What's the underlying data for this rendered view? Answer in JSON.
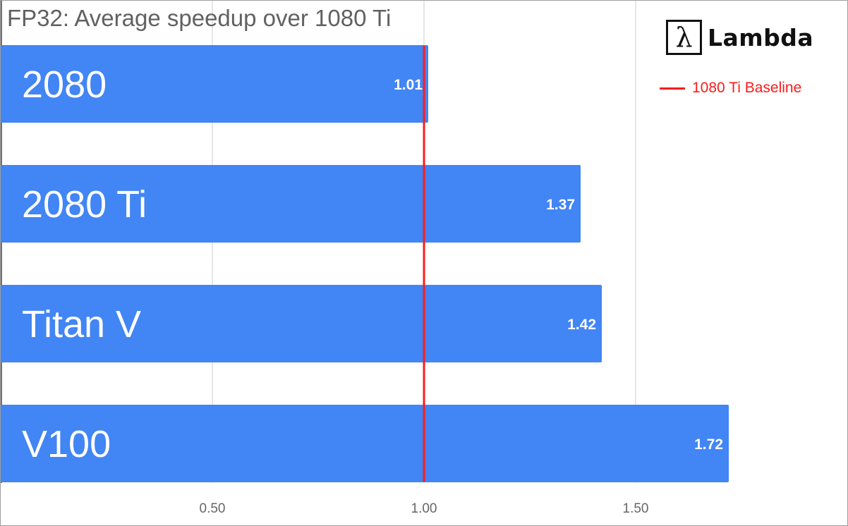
{
  "chart_data": {
    "type": "bar",
    "orientation": "horizontal",
    "title": "FP32: Average speedup over 1080 Ti",
    "categories": [
      "2080",
      "2080 Ti",
      "Titan V",
      "V100"
    ],
    "series": [
      {
        "values": [
          1.01,
          1.37,
          1.42,
          1.72
        ],
        "data_labels": [
          "1.01",
          "1.37",
          "1.42",
          "1.72"
        ]
      }
    ],
    "xlim": [
      0,
      2.0
    ],
    "xticks": [
      0.5,
      1.0,
      1.5
    ],
    "xtick_labels": [
      "0.50",
      "1.00",
      "1.50"
    ],
    "gridlines": true,
    "baseline": {
      "label": "1080 Ti Baseline",
      "value": 1.0
    },
    "legend_position": "top-right",
    "xlabel": "",
    "ylabel": ""
  },
  "logo": {
    "symbol": "λ",
    "text": "Lambda"
  },
  "colors": {
    "bar": "#4285f4",
    "baseline": "#ff1a1a",
    "grid": "#cccccc",
    "axis_text": "#666666",
    "title": "#616161"
  }
}
